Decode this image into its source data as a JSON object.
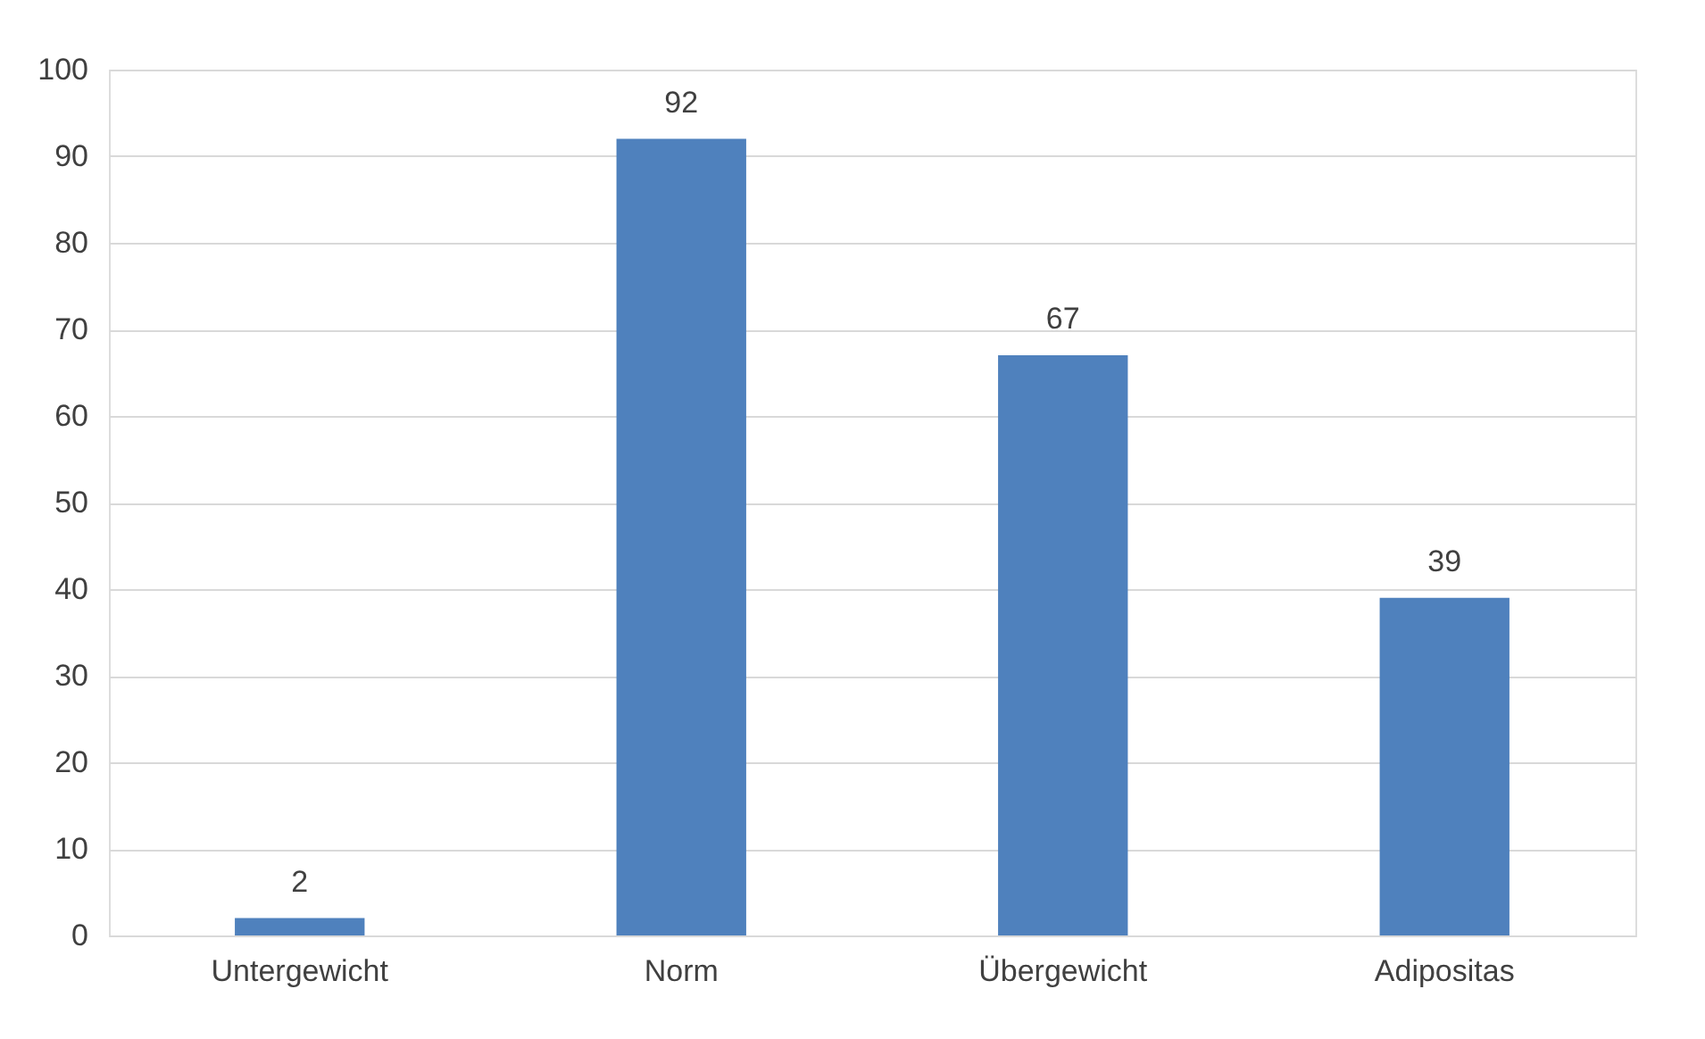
{
  "chart_data": {
    "type": "bar",
    "categories": [
      "Untergewicht",
      "Norm",
      "Übergewicht",
      "Adipositas"
    ],
    "values": [
      2,
      92,
      67,
      39
    ],
    "color": "#4f81bd",
    "ylim": [
      0,
      100
    ],
    "yticks": [
      0,
      10,
      20,
      30,
      40,
      50,
      60,
      70,
      80,
      90,
      100
    ],
    "grid": "y",
    "data_labels": true
  }
}
